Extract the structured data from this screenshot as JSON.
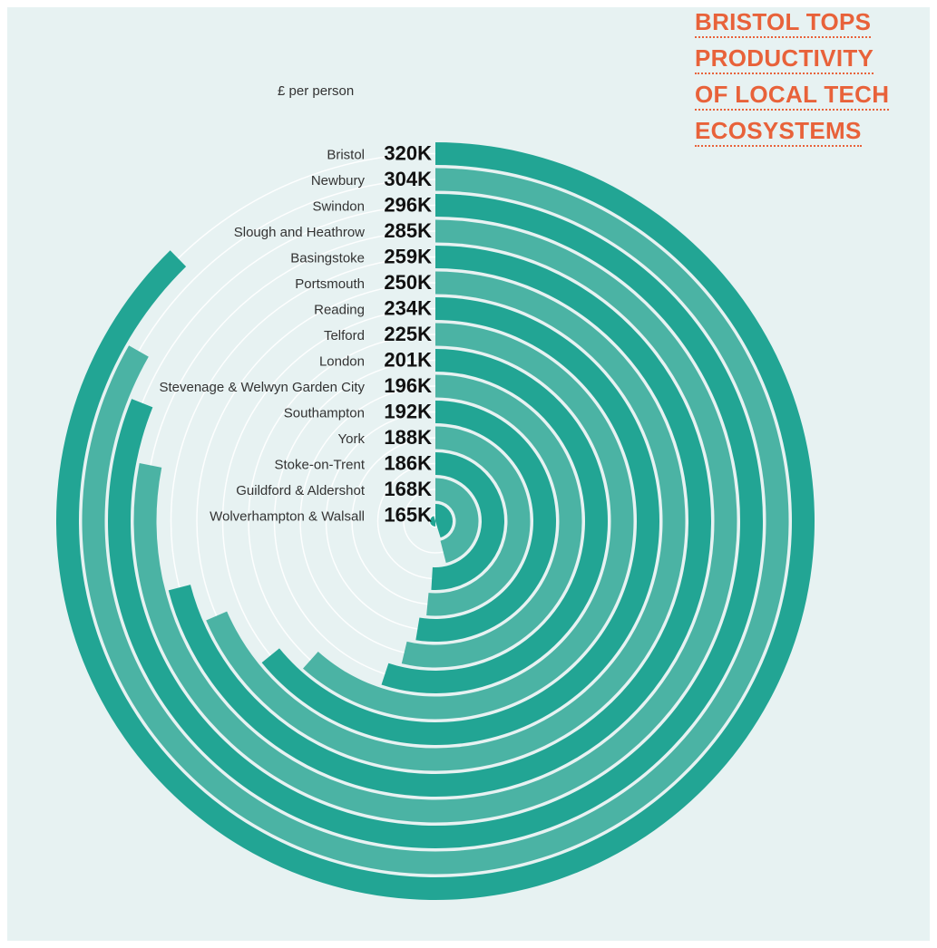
{
  "title_lines": [
    "BRISTOL TOPS",
    "PRODUCTIVITY",
    "OF LOCAL TECH",
    "ECOSYSTEMS"
  ],
  "unit_label": "£ per person",
  "colors": {
    "background": "#e7f2f2",
    "bar_dark": "#22a594",
    "bar_light": "#4bb3a4",
    "guide": "#ffffff",
    "title": "#e8623a"
  },
  "chart_data": {
    "type": "bar",
    "layout": "radial",
    "categories": [
      "Bristol",
      "Newbury",
      "Swindon",
      "Slough and Heathrow",
      "Basingstoke",
      "Portsmouth",
      "Reading",
      "Telford",
      "London",
      "Stevenage & Welwyn Garden City",
      "Southampton",
      "York",
      "Stoke-on-Trent",
      "Guildford & Aldershot",
      "Wolverhampton & Walsall"
    ],
    "values": [
      320,
      304,
      296,
      285,
      259,
      250,
      234,
      225,
      201,
      196,
      192,
      188,
      186,
      168,
      165
    ],
    "value_labels": [
      "320K",
      "304K",
      "296K",
      "285K",
      "259K",
      "250K",
      "234K",
      "225K",
      "201K",
      "196K",
      "192K",
      "188K",
      "186K",
      "168K",
      "165K"
    ],
    "unit": "£ per person",
    "title": "BRISTOL TOPS PRODUCTIVITY OF LOCAL TECH ECOSYSTEMS"
  }
}
